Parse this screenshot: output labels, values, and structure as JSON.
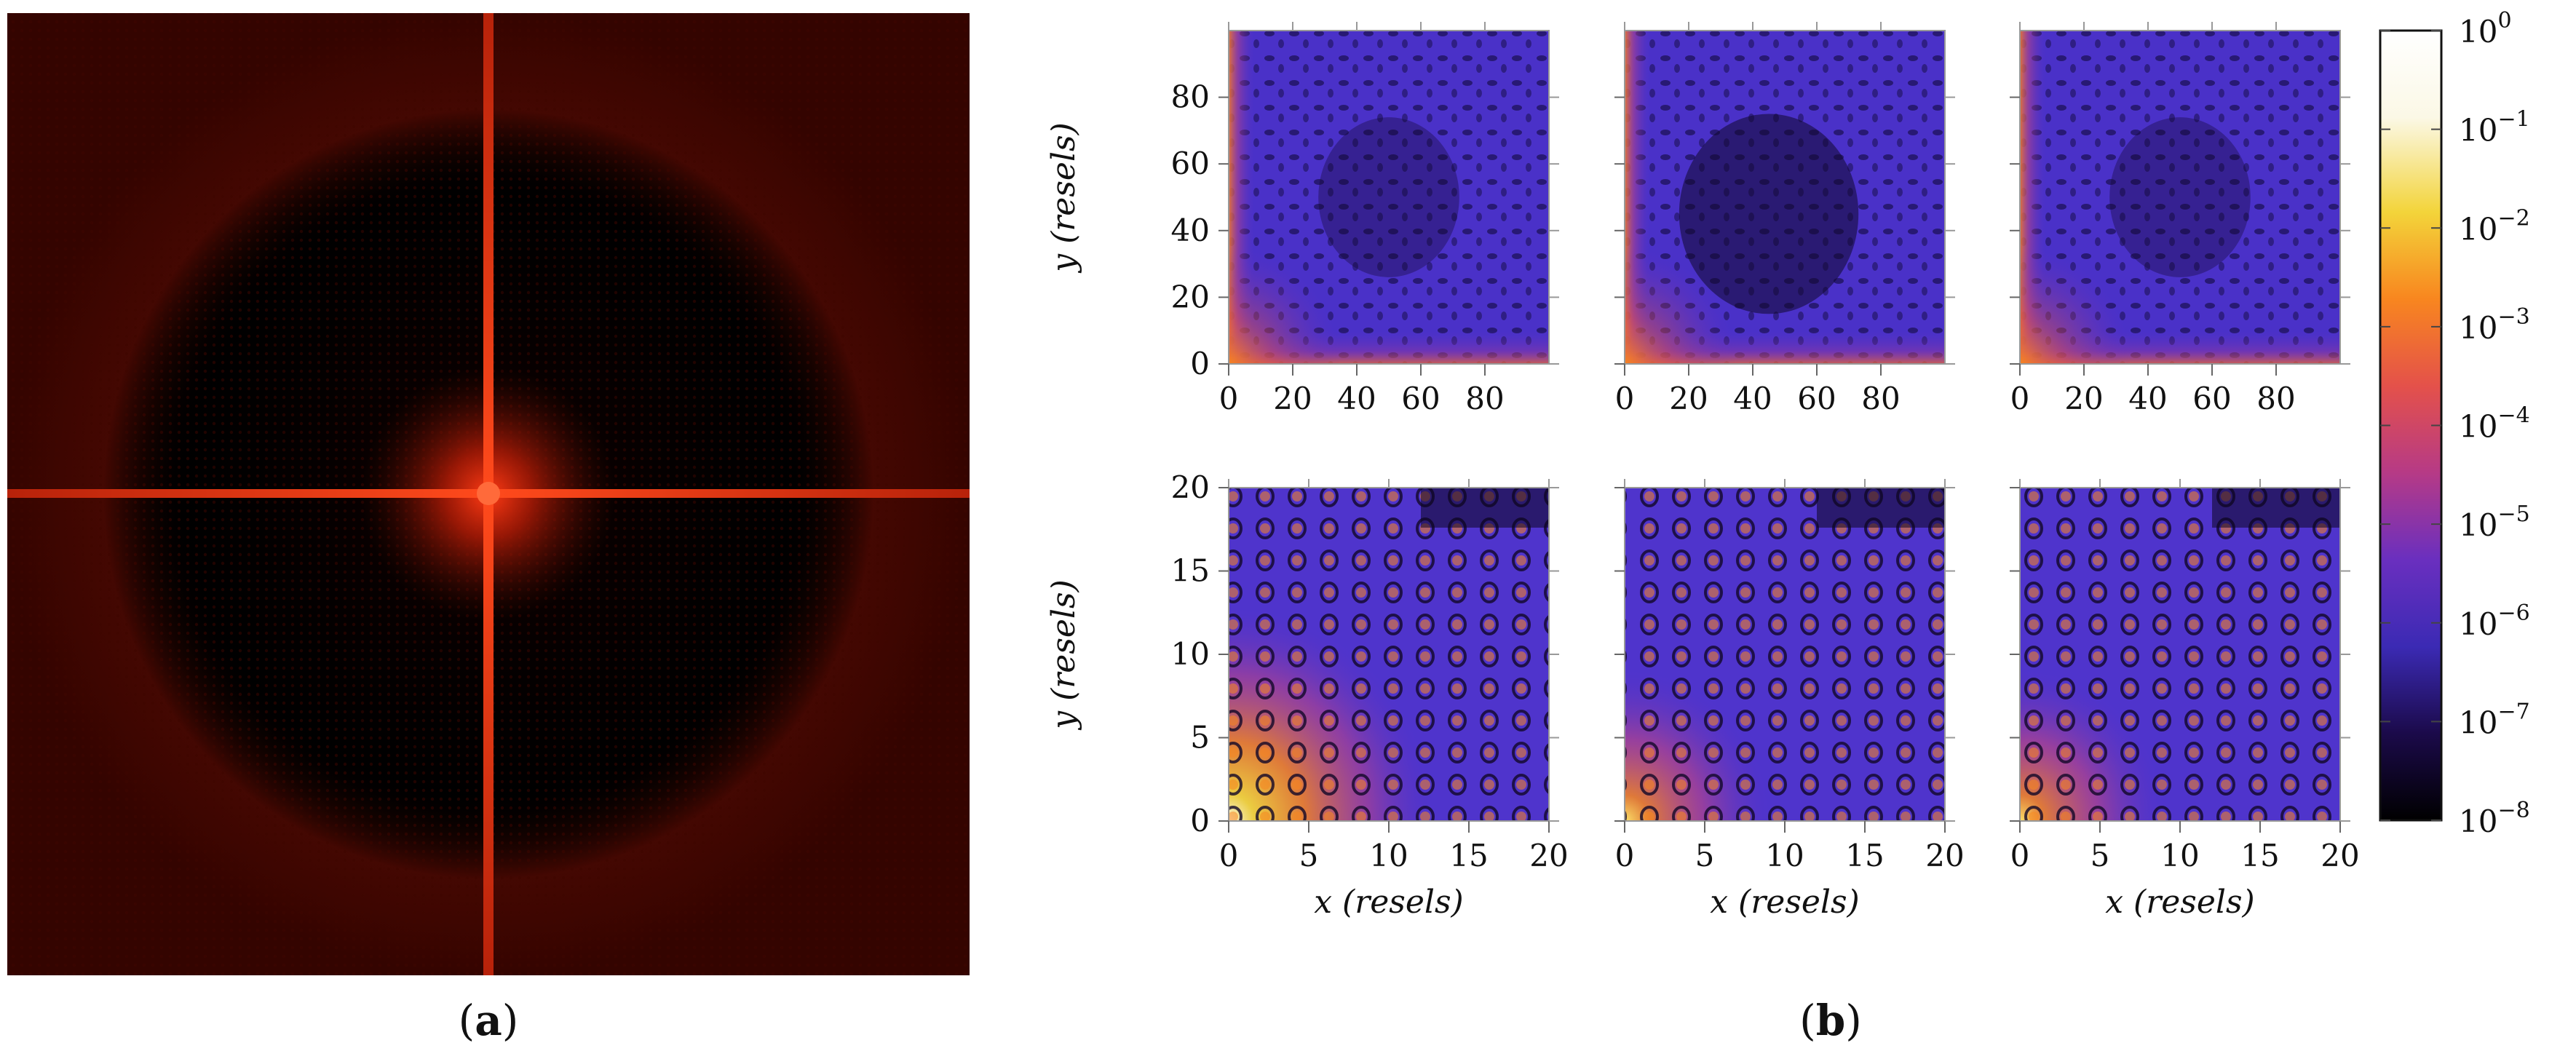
{
  "panel_labels": {
    "a": "a",
    "b": "b"
  },
  "chart_data": [
    {
      "type": "heatmap",
      "panel": "a",
      "title": "",
      "description_kind": "diffraction-pattern",
      "colormap": [
        "#000000",
        "#3a0400",
        "#9a1a06",
        "#ff3a14"
      ],
      "grid": false
    },
    {
      "type": "heatmap",
      "panel": "b",
      "rows": 2,
      "cols": 3,
      "colormap": [
        "#000000",
        "#1b0a4a",
        "#3b2ab4",
        "#6a2fbf",
        "#b63a86",
        "#e4514a",
        "#f8861f",
        "#f3d43a",
        "#fbf8e6",
        "#ffffff"
      ],
      "colorbar": {
        "scale": "log",
        "range": [
          1e-08,
          1
        ],
        "tick_labels": [
          {
            "base": "10",
            "exp": "0"
          },
          {
            "base": "10",
            "exp": "−1"
          },
          {
            "base": "10",
            "exp": "−2"
          },
          {
            "base": "10",
            "exp": "−3"
          },
          {
            "base": "10",
            "exp": "−4"
          },
          {
            "base": "10",
            "exp": "−5"
          },
          {
            "base": "10",
            "exp": "−6"
          },
          {
            "base": "10",
            "exp": "−7"
          },
          {
            "base": "10",
            "exp": "−8"
          }
        ]
      },
      "rows_data": [
        {
          "xlim": [
            0,
            100
          ],
          "ylim": [
            0,
            100
          ],
          "xticks": [
            "0",
            "20",
            "40",
            "60",
            "80"
          ],
          "xtick_values": [
            0,
            20,
            40,
            60,
            80
          ],
          "yticks": [
            "0",
            "20",
            "40",
            "60",
            "80"
          ],
          "ytick_values": [
            0,
            20,
            40,
            60,
            80
          ],
          "xlabel": "",
          "ylabel": "y (resels)"
        },
        {
          "xlim": [
            0,
            20
          ],
          "ylim": [
            0,
            20
          ],
          "xticks": [
            "0",
            "5",
            "10",
            "15",
            "20"
          ],
          "xtick_values": [
            0,
            5,
            10,
            15,
            20
          ],
          "yticks": [
            "0",
            "5",
            "10",
            "15",
            "20"
          ],
          "ytick_values": [
            0,
            5,
            10,
            15,
            20
          ],
          "xlabel": "x (resels)",
          "ylabel": "y (resels)"
        }
      ]
    }
  ]
}
